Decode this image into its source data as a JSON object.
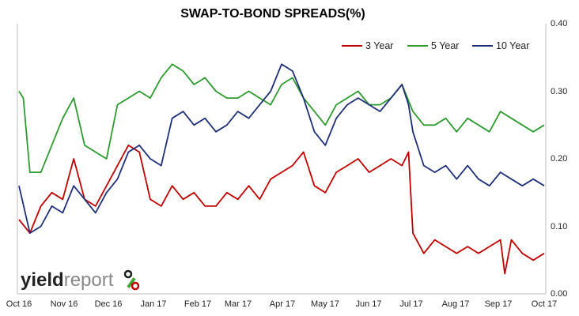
{
  "chart_data": {
    "type": "line",
    "title": "SWAP-TO-BOND SPREADS(%)",
    "xlabel": "",
    "ylabel": "",
    "x_ticks": [
      "Oct 16",
      "Nov 16",
      "Dec 16",
      "Jan 17",
      "Feb 17",
      "Mar 17",
      "Apr 17",
      "May 17",
      "Jun 17",
      "Jul 17",
      "Aug 17",
      "Sep 17",
      "Oct 17"
    ],
    "y_ticks": [
      "0.00",
      "0.10",
      "0.20",
      "0.30",
      "0.40"
    ],
    "ylim": [
      0,
      0.4
    ],
    "y_axis_side": "right",
    "grid": false,
    "legend_position": "top-right",
    "series": [
      {
        "name": "3 Year",
        "color": "#c00000",
        "x": [
          0,
          0.25,
          0.5,
          0.75,
          1,
          1.25,
          1.5,
          1.75,
          2,
          2.25,
          2.5,
          2.75,
          3,
          3.25,
          3.5,
          3.75,
          4,
          4.25,
          4.5,
          4.75,
          5,
          5.25,
          5.5,
          5.75,
          6,
          6.25,
          6.5,
          6.75,
          7,
          7.25,
          7.5,
          7.75,
          8,
          8.25,
          8.5,
          8.75,
          8.9,
          9,
          9.25,
          9.5,
          9.75,
          10,
          10.25,
          10.5,
          10.75,
          11,
          11.1,
          11.25,
          11.5,
          11.75,
          12
        ],
        "values": [
          0.11,
          0.09,
          0.13,
          0.15,
          0.14,
          0.2,
          0.14,
          0.13,
          0.16,
          0.19,
          0.22,
          0.21,
          0.14,
          0.13,
          0.16,
          0.14,
          0.15,
          0.13,
          0.13,
          0.15,
          0.14,
          0.16,
          0.14,
          0.17,
          0.18,
          0.19,
          0.21,
          0.16,
          0.15,
          0.18,
          0.19,
          0.2,
          0.18,
          0.19,
          0.2,
          0.19,
          0.21,
          0.09,
          0.06,
          0.08,
          0.07,
          0.06,
          0.07,
          0.06,
          0.07,
          0.08,
          0.03,
          0.08,
          0.06,
          0.05,
          0.06
        ]
      },
      {
        "name": "5 Year",
        "color": "#2e9a30",
        "x": [
          0,
          0.1,
          0.25,
          0.5,
          0.75,
          1,
          1.25,
          1.5,
          1.75,
          2,
          2.25,
          2.5,
          2.75,
          3,
          3.25,
          3.5,
          3.75,
          4,
          4.25,
          4.5,
          4.75,
          5,
          5.25,
          5.5,
          5.75,
          6,
          6.25,
          6.5,
          6.75,
          7,
          7.25,
          7.5,
          7.75,
          8,
          8.25,
          8.5,
          8.75,
          9,
          9.25,
          9.5,
          9.75,
          10,
          10.25,
          10.5,
          10.75,
          11,
          11.25,
          11.5,
          11.75,
          12
        ],
        "values": [
          0.3,
          0.29,
          0.18,
          0.18,
          0.22,
          0.26,
          0.29,
          0.22,
          0.21,
          0.2,
          0.28,
          0.29,
          0.3,
          0.29,
          0.32,
          0.34,
          0.33,
          0.31,
          0.32,
          0.3,
          0.29,
          0.29,
          0.3,
          0.29,
          0.28,
          0.31,
          0.32,
          0.29,
          0.27,
          0.25,
          0.28,
          0.29,
          0.3,
          0.28,
          0.28,
          0.29,
          0.31,
          0.27,
          0.25,
          0.25,
          0.26,
          0.24,
          0.26,
          0.25,
          0.24,
          0.27,
          0.26,
          0.25,
          0.24,
          0.25
        ]
      },
      {
        "name": "10 Year",
        "color": "#1f3078",
        "x": [
          0,
          0.25,
          0.5,
          0.75,
          1,
          1.25,
          1.5,
          1.75,
          2,
          2.25,
          2.5,
          2.75,
          3,
          3.25,
          3.5,
          3.75,
          4,
          4.25,
          4.5,
          4.75,
          5,
          5.25,
          5.5,
          5.75,
          6,
          6.25,
          6.5,
          6.75,
          7,
          7.25,
          7.5,
          7.75,
          8,
          8.25,
          8.5,
          8.75,
          8.9,
          9,
          9.25,
          9.5,
          9.75,
          10,
          10.25,
          10.5,
          10.75,
          11,
          11.25,
          11.5,
          11.75,
          12
        ],
        "values": [
          0.16,
          0.09,
          0.1,
          0.13,
          0.12,
          0.16,
          0.14,
          0.12,
          0.15,
          0.17,
          0.21,
          0.22,
          0.2,
          0.19,
          0.26,
          0.27,
          0.25,
          0.26,
          0.24,
          0.25,
          0.27,
          0.26,
          0.28,
          0.3,
          0.34,
          0.33,
          0.29,
          0.24,
          0.22,
          0.26,
          0.28,
          0.29,
          0.28,
          0.27,
          0.29,
          0.31,
          0.28,
          0.24,
          0.19,
          0.18,
          0.19,
          0.17,
          0.19,
          0.17,
          0.16,
          0.18,
          0.17,
          0.16,
          0.17,
          0.16
        ]
      }
    ]
  },
  "logo": {
    "word": "yieldreport",
    "symbol": "%",
    "colors": {
      "yield": "#222222",
      "report": "#888888",
      "percent_bar": "#3fa535",
      "percent_ring_top": "#1a1a1a",
      "percent_ring_bottom": "#c00000"
    }
  }
}
